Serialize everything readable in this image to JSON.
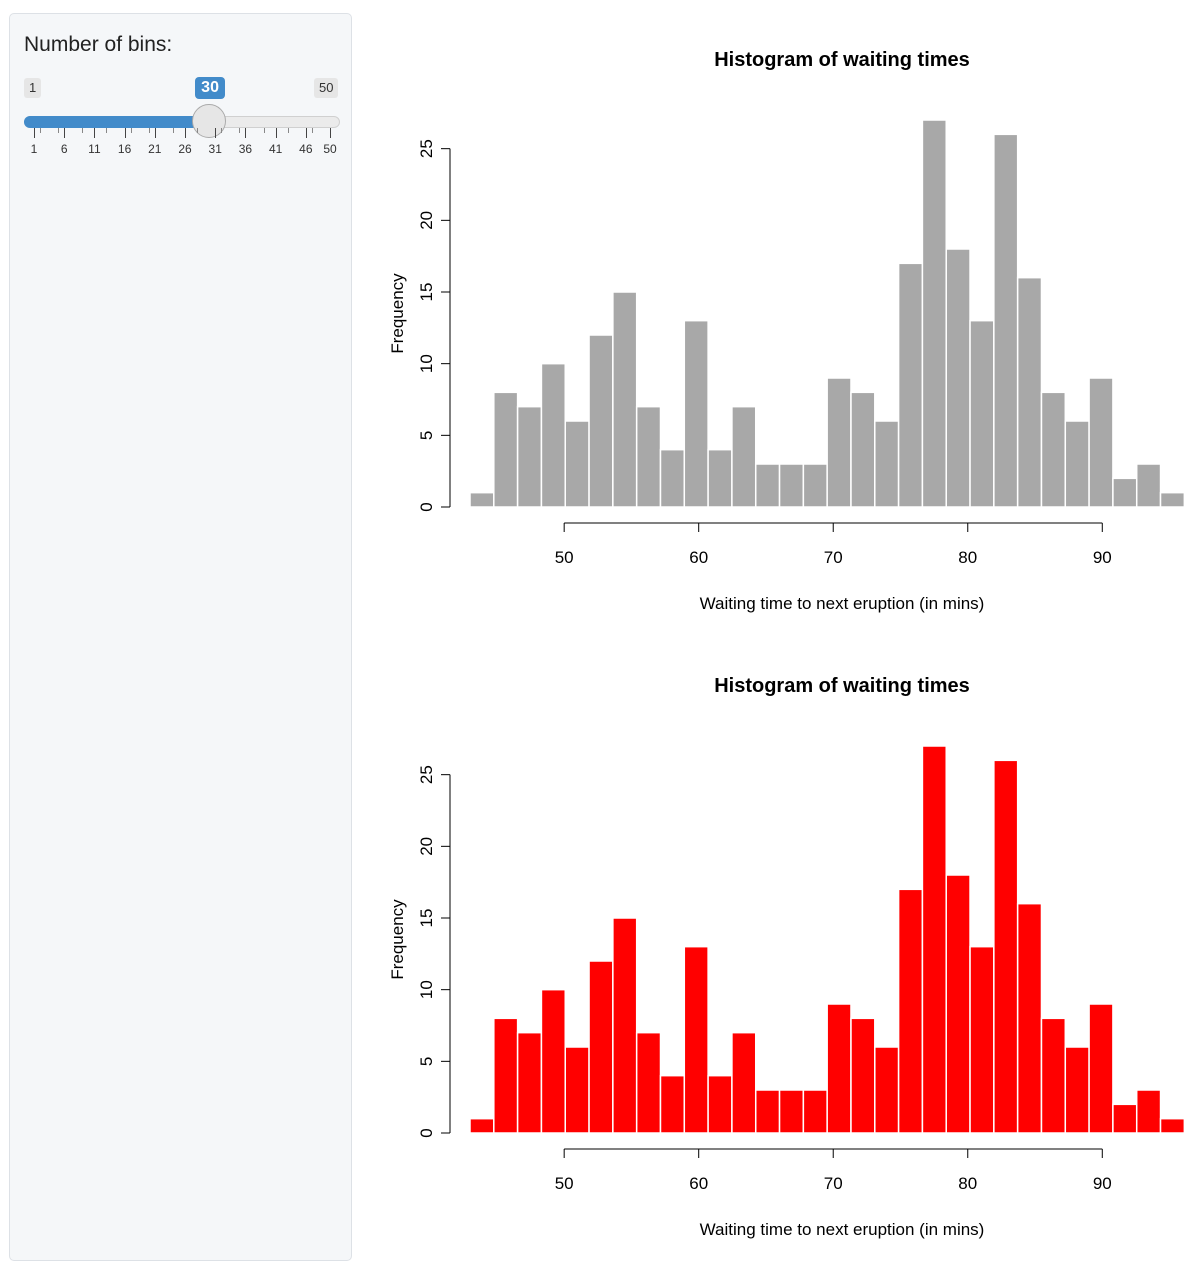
{
  "sidebar": {
    "slider": {
      "label": "Number of bins:",
      "min": 1,
      "max": 50,
      "value": 30,
      "min_label": "1",
      "max_label": "50",
      "value_label": "30",
      "tick_labels": [
        "1",
        "6",
        "11",
        "16",
        "21",
        "26",
        "31",
        "36",
        "41",
        "46",
        "50"
      ],
      "accent_color": "#428bca"
    }
  },
  "chart_data": [
    {
      "type": "bar",
      "title": "Histogram of waiting times",
      "xlabel": "Waiting time to next eruption (in mins)",
      "ylabel": "Frequency",
      "bin_start": 43,
      "bin_width": 1.77,
      "values": [
        1,
        8,
        7,
        10,
        6,
        12,
        15,
        7,
        4,
        13,
        4,
        7,
        3,
        3,
        3,
        9,
        8,
        6,
        17,
        27,
        18,
        13,
        26,
        16,
        8,
        6,
        9,
        2,
        3,
        1
      ],
      "xticks": [
        50,
        60,
        70,
        80,
        90
      ],
      "yticks": [
        0,
        5,
        10,
        15,
        20,
        25
      ],
      "xlim": [
        43,
        96
      ],
      "ylim": [
        0,
        27
      ],
      "bar_color": "#a8a8a8",
      "border_color": "#ffffff"
    },
    {
      "type": "bar",
      "title": "Histogram of waiting times",
      "xlabel": "Waiting time to next eruption (in mins)",
      "ylabel": "Frequency",
      "bin_start": 43,
      "bin_width": 1.77,
      "values": [
        1,
        8,
        7,
        10,
        6,
        12,
        15,
        7,
        4,
        13,
        4,
        7,
        3,
        3,
        3,
        9,
        8,
        6,
        17,
        27,
        18,
        13,
        26,
        16,
        8,
        6,
        9,
        2,
        3,
        1
      ],
      "xticks": [
        50,
        60,
        70,
        80,
        90
      ],
      "yticks": [
        0,
        5,
        10,
        15,
        20,
        25
      ],
      "xlim": [
        43,
        96
      ],
      "ylim": [
        0,
        27
      ],
      "bar_color": "#ff0000",
      "border_color": "#ffffff"
    }
  ]
}
